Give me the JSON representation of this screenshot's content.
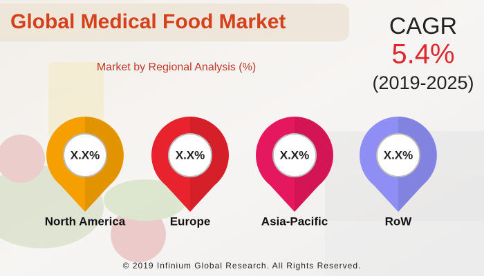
{
  "header": {
    "title": "Global Medical Food Market",
    "subtitle": "Market by Regional Analysis (%)"
  },
  "cagr": {
    "label": "CAGR",
    "value": "5.4%",
    "period": "(2019-2025)"
  },
  "regions": [
    {
      "label": "North America",
      "value": "X.X%",
      "color": "#f5a000"
    },
    {
      "label": "Europe",
      "value": "X.X%",
      "color": "#e8232e"
    },
    {
      "label": "Asia-Pacific",
      "value": "X.X%",
      "color": "#e5175e"
    },
    {
      "label": "RoW",
      "value": "X.X%",
      "color": "#8e8ef4"
    }
  ],
  "footer": "© 2019 Infinium Global Research. All Rights Reserved."
}
